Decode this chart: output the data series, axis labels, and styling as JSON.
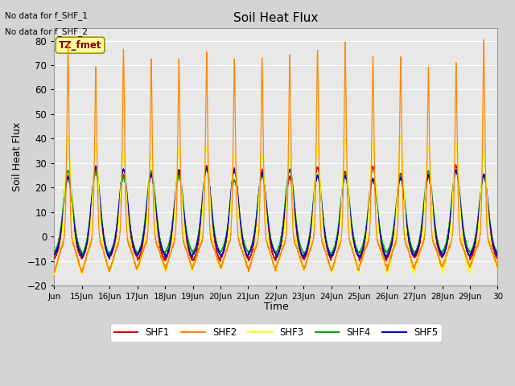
{
  "title": "Soil Heat Flux",
  "ylabel": "Soil Heat Flux",
  "xlabel": "Time",
  "ylim": [
    -20,
    85
  ],
  "yticks": [
    -20,
    -10,
    0,
    10,
    20,
    30,
    40,
    50,
    60,
    70,
    80
  ],
  "fig_bg_color": "#d4d4d4",
  "plot_bg_color": "#e8e8e8",
  "note_line1": "No data for f_SHF_1",
  "note_line2": "No data for f_SHF_2",
  "legend_label": "TZ_fmet",
  "series_colors": {
    "SHF1": "#dd0000",
    "SHF2": "#ff8800",
    "SHF3": "#ffff00",
    "SHF4": "#00aa00",
    "SHF5": "#0000cc"
  },
  "n_days": 16,
  "start_day": 14,
  "points_per_day": 288,
  "figsize": [
    6.4,
    4.8
  ],
  "dpi": 100
}
